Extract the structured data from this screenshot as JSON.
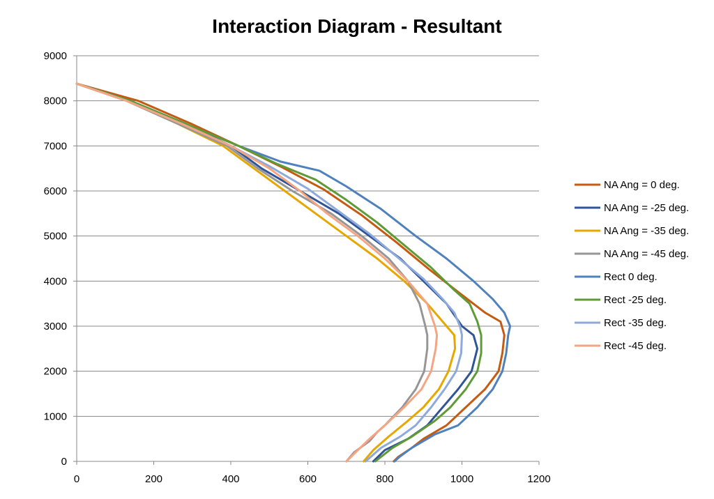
{
  "chart_data": {
    "type": "line",
    "title": "Interaction Diagram - Resultant",
    "xlabel": "",
    "ylabel": "",
    "xlim": [
      0,
      1200
    ],
    "ylim": [
      0,
      9000
    ],
    "xticks": [
      0,
      200,
      400,
      600,
      800,
      1000,
      1200
    ],
    "yticks": [
      0,
      1000,
      2000,
      3000,
      4000,
      5000,
      6000,
      7000,
      8000,
      9000
    ],
    "grid": "horizontal",
    "legend_position": "right",
    "series": [
      {
        "name": "NA Ang = 0 deg.",
        "color": "#C55A11",
        "points": [
          [
            0,
            8380
          ],
          [
            160,
            8000
          ],
          [
            300,
            7480
          ],
          [
            420,
            7000
          ],
          [
            530,
            6540
          ],
          [
            640,
            6040
          ],
          [
            740,
            5460
          ],
          [
            830,
            4860
          ],
          [
            915,
            4260
          ],
          [
            990,
            3760
          ],
          [
            1060,
            3300
          ],
          [
            1100,
            3100
          ],
          [
            1110,
            2800
          ],
          [
            1105,
            2400
          ],
          [
            1095,
            2000
          ],
          [
            1060,
            1600
          ],
          [
            1010,
            1200
          ],
          [
            960,
            800
          ],
          [
            900,
            500
          ],
          [
            870,
            300
          ],
          [
            835,
            100
          ],
          [
            823,
            0
          ]
        ]
      },
      {
        "name": "NA Ang = -25 deg.",
        "color": "#2F5597",
        "points": [
          [
            0,
            8380
          ],
          [
            140,
            8000
          ],
          [
            280,
            7500
          ],
          [
            400,
            7000
          ],
          [
            480,
            6500
          ],
          [
            580,
            6000
          ],
          [
            680,
            5500
          ],
          [
            760,
            5000
          ],
          [
            840,
            4500
          ],
          [
            900,
            4000
          ],
          [
            960,
            3500
          ],
          [
            1000,
            3000
          ],
          [
            1030,
            2800
          ],
          [
            1040,
            2500
          ],
          [
            1025,
            2000
          ],
          [
            990,
            1600
          ],
          [
            950,
            1200
          ],
          [
            910,
            800
          ],
          [
            860,
            500
          ],
          [
            800,
            250
          ],
          [
            770,
            0
          ]
        ]
      },
      {
        "name": "NA Ang = -35 deg.",
        "color": "#E6A700",
        "points": [
          [
            0,
            8380
          ],
          [
            130,
            8000
          ],
          [
            260,
            7500
          ],
          [
            380,
            7000
          ],
          [
            460,
            6500
          ],
          [
            540,
            6000
          ],
          [
            620,
            5500
          ],
          [
            700,
            5000
          ],
          [
            780,
            4500
          ],
          [
            850,
            4000
          ],
          [
            910,
            3500
          ],
          [
            960,
            3000
          ],
          [
            980,
            2800
          ],
          [
            982,
            2500
          ],
          [
            965,
            2000
          ],
          [
            940,
            1600
          ],
          [
            900,
            1200
          ],
          [
            860,
            900
          ],
          [
            810,
            550
          ],
          [
            770,
            250
          ],
          [
            745,
            0
          ]
        ]
      },
      {
        "name": "NA Ang = -45 deg.",
        "color": "#969696",
        "points": [
          [
            0,
            8380
          ],
          [
            130,
            8000
          ],
          [
            260,
            7500
          ],
          [
            390,
            7000
          ],
          [
            470,
            6500
          ],
          [
            560,
            6000
          ],
          [
            660,
            5500
          ],
          [
            740,
            5000
          ],
          [
            810,
            4500
          ],
          [
            860,
            4000
          ],
          [
            890,
            3500
          ],
          [
            905,
            3000
          ],
          [
            910,
            2800
          ],
          [
            910,
            2500
          ],
          [
            902,
            2000
          ],
          [
            880,
            1600
          ],
          [
            845,
            1200
          ],
          [
            800,
            800
          ],
          [
            780,
            650
          ],
          [
            760,
            450
          ],
          [
            720,
            200
          ],
          [
            700,
            0
          ]
        ]
      },
      {
        "name": "Rect 0 deg.",
        "color": "#4F81BD",
        "points": [
          [
            0,
            8380
          ],
          [
            140,
            8000
          ],
          [
            280,
            7500
          ],
          [
            420,
            7000
          ],
          [
            530,
            6650
          ],
          [
            630,
            6450
          ],
          [
            700,
            6100
          ],
          [
            790,
            5600
          ],
          [
            880,
            5000
          ],
          [
            960,
            4500
          ],
          [
            1030,
            4000
          ],
          [
            1080,
            3600
          ],
          [
            1110,
            3300
          ],
          [
            1125,
            3000
          ],
          [
            1120,
            2800
          ],
          [
            1115,
            2400
          ],
          [
            1105,
            2000
          ],
          [
            1080,
            1600
          ],
          [
            1040,
            1200
          ],
          [
            990,
            800
          ],
          [
            930,
            600
          ],
          [
            870,
            300
          ],
          [
            838,
            100
          ],
          [
            825,
            0
          ]
        ]
      },
      {
        "name": "Rect -25 deg.",
        "color": "#5E9A35",
        "points": [
          [
            0,
            8380
          ],
          [
            140,
            8000
          ],
          [
            280,
            7500
          ],
          [
            420,
            7000
          ],
          [
            520,
            6600
          ],
          [
            620,
            6250
          ],
          [
            700,
            5800
          ],
          [
            780,
            5300
          ],
          [
            850,
            4800
          ],
          [
            920,
            4300
          ],
          [
            980,
            3800
          ],
          [
            1020,
            3500
          ],
          [
            1040,
            3100
          ],
          [
            1050,
            2800
          ],
          [
            1050,
            2400
          ],
          [
            1040,
            2000
          ],
          [
            1010,
            1600
          ],
          [
            970,
            1200
          ],
          [
            930,
            900
          ],
          [
            870,
            550
          ],
          [
            820,
            300
          ],
          [
            775,
            0
          ]
        ]
      },
      {
        "name": "Rect -35 deg.",
        "color": "#8EA9DB",
        "points": [
          [
            0,
            8380
          ],
          [
            130,
            8000
          ],
          [
            270,
            7500
          ],
          [
            400,
            7000
          ],
          [
            500,
            6550
          ],
          [
            600,
            6050
          ],
          [
            680,
            5550
          ],
          [
            760,
            5050
          ],
          [
            830,
            4550
          ],
          [
            900,
            4050
          ],
          [
            950,
            3600
          ],
          [
            980,
            3300
          ],
          [
            995,
            3000
          ],
          [
            1000,
            2800
          ],
          [
            998,
            2400
          ],
          [
            985,
            2000
          ],
          [
            955,
            1600
          ],
          [
            920,
            1200
          ],
          [
            880,
            800
          ],
          [
            840,
            550
          ],
          [
            790,
            300
          ],
          [
            750,
            0
          ]
        ]
      },
      {
        "name": "Rect -45 deg.",
        "color": "#F4A582",
        "points": [
          [
            0,
            8380
          ],
          [
            130,
            8000
          ],
          [
            270,
            7500
          ],
          [
            400,
            7000
          ],
          [
            500,
            6500
          ],
          [
            580,
            6000
          ],
          [
            650,
            5500
          ],
          [
            730,
            5000
          ],
          [
            800,
            4500
          ],
          [
            860,
            4000
          ],
          [
            910,
            3500
          ],
          [
            930,
            3000
          ],
          [
            935,
            2800
          ],
          [
            932,
            2500
          ],
          [
            920,
            2000
          ],
          [
            895,
            1600
          ],
          [
            850,
            1200
          ],
          [
            800,
            800
          ],
          [
            760,
            500
          ],
          [
            730,
            250
          ],
          [
            700,
            0
          ]
        ]
      }
    ]
  }
}
